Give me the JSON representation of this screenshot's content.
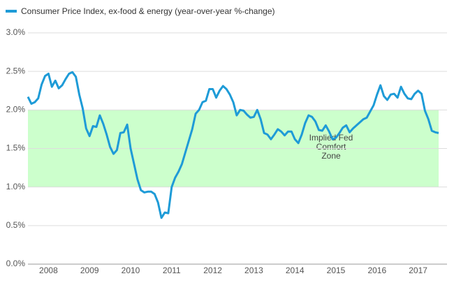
{
  "chart_data": {
    "type": "line",
    "categories": [
      null,
      null,
      null,
      null,
      null,
      null,
      "2008",
      null,
      null,
      null,
      null,
      null,
      null,
      null,
      null,
      null,
      null,
      null,
      "2009",
      null,
      null,
      null,
      null,
      null,
      null,
      null,
      null,
      null,
      null,
      null,
      "2010",
      null,
      null,
      null,
      null,
      null,
      null,
      null,
      null,
      null,
      null,
      null,
      "2011",
      null,
      null,
      null,
      null,
      null,
      null,
      null,
      null,
      null,
      null,
      null,
      "2012",
      null,
      null,
      null,
      null,
      null,
      null,
      null,
      null,
      null,
      null,
      null,
      "2013",
      null,
      null,
      null,
      null,
      null,
      null,
      null,
      null,
      null,
      null,
      null,
      "2014",
      null,
      null,
      null,
      null,
      null,
      null,
      null,
      null,
      null,
      null,
      null,
      "2015",
      null,
      null,
      null,
      null,
      null,
      null,
      null,
      null,
      null,
      null,
      null,
      "2016",
      null,
      null,
      null,
      null,
      null,
      null,
      null,
      null,
      null,
      null,
      null,
      "2017",
      null,
      null,
      null,
      null,
      null,
      null
    ],
    "series": [
      {
        "name": "Consumer Price Index, ex-food & energy (year-over-year %-change)",
        "color": "#1e9bd7",
        "values": [
          2.17,
          2.08,
          2.1,
          2.15,
          2.33,
          2.44,
          2.47,
          2.3,
          2.38,
          2.28,
          2.32,
          2.4,
          2.47,
          2.49,
          2.43,
          2.2,
          2.02,
          1.76,
          1.66,
          1.79,
          1.78,
          1.93,
          1.82,
          1.68,
          1.52,
          1.43,
          1.48,
          1.7,
          1.71,
          1.81,
          1.5,
          1.3,
          1.1,
          0.96,
          0.93,
          0.94,
          0.94,
          0.91,
          0.8,
          0.6,
          0.67,
          0.66,
          1.0,
          1.12,
          1.2,
          1.3,
          1.45,
          1.6,
          1.75,
          1.95,
          2.0,
          2.1,
          2.12,
          2.27,
          2.27,
          2.16,
          2.25,
          2.31,
          2.27,
          2.2,
          2.1,
          1.93,
          2.0,
          1.99,
          1.94,
          1.9,
          1.91,
          2.0,
          1.88,
          1.7,
          1.68,
          1.62,
          1.68,
          1.75,
          1.72,
          1.67,
          1.72,
          1.72,
          1.62,
          1.57,
          1.68,
          1.83,
          1.93,
          1.91,
          1.85,
          1.74,
          1.73,
          1.8,
          1.72,
          1.62,
          1.64,
          1.7,
          1.77,
          1.8,
          1.71,
          1.76,
          1.8,
          1.84,
          1.88,
          1.9,
          1.98,
          2.06,
          2.2,
          2.32,
          2.18,
          2.13,
          2.2,
          2.21,
          2.16,
          2.3,
          2.21,
          2.15,
          2.14,
          2.21,
          2.25,
          2.21,
          1.99,
          1.88,
          1.73,
          1.71,
          1.7
        ]
      }
    ],
    "ylim": [
      0,
      3
    ],
    "yticks": [
      {
        "value": 0,
        "label": "0.0%"
      },
      {
        "value": 0.5,
        "label": "0.5%"
      },
      {
        "value": 1,
        "label": "1.0%"
      },
      {
        "value": 1.5,
        "label": "1.5%"
      },
      {
        "value": 2,
        "label": "2.0%"
      },
      {
        "value": 2.5,
        "label": "2.5%"
      },
      {
        "value": 3,
        "label": "3.0%"
      }
    ],
    "grid": true,
    "band": {
      "from": 1,
      "to": 2,
      "color": "#ccffcc",
      "label": [
        "Implied Fed",
        "Comfort",
        "Zone"
      ]
    }
  }
}
